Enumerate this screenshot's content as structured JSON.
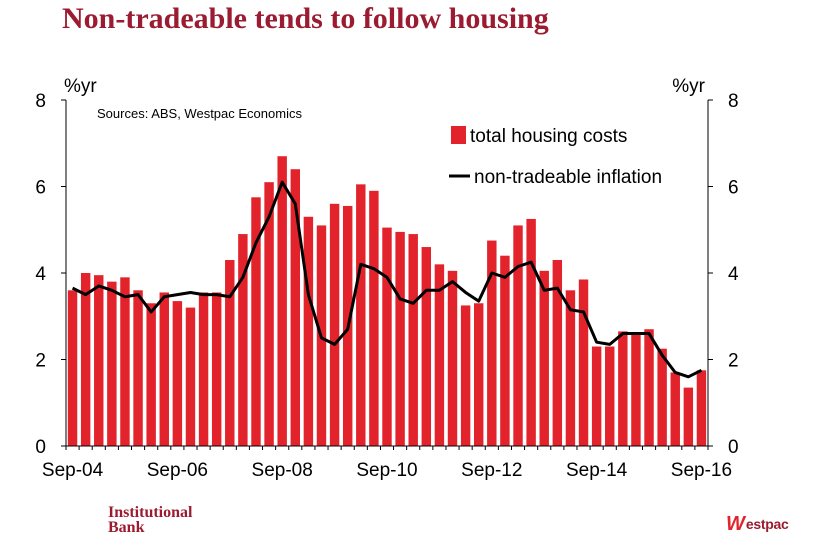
{
  "title": "Non-tradeable tends to follow housing",
  "footer": {
    "institutional_logo_line1": "Institutional",
    "institutional_logo_line2": "Bank",
    "westpac_mark": "W",
    "westpac_text": "estpac"
  },
  "colors": {
    "bar": "#e3232b",
    "line": "#000000",
    "title": "#9b1b30"
  },
  "chart_data": {
    "type": "bar",
    "title": "Non-tradeable tends to follow housing",
    "source": "Sources: ABS, Westpac Economics",
    "left_unit": "%yr",
    "right_unit": "%yr",
    "ylim": [
      0,
      8
    ],
    "yticks": [
      0,
      2,
      4,
      6,
      8
    ],
    "xtick_labels": [
      "Sep-04",
      "Sep-06",
      "Sep-08",
      "Sep-10",
      "Sep-12",
      "Sep-14",
      "Sep-16"
    ],
    "legend_position": "top-right",
    "grid": false,
    "categories": [
      "Sep-04",
      "Dec-04",
      "Mar-05",
      "Jun-05",
      "Sep-05",
      "Dec-05",
      "Mar-06",
      "Jun-06",
      "Sep-06",
      "Dec-06",
      "Mar-07",
      "Jun-07",
      "Sep-07",
      "Dec-07",
      "Mar-08",
      "Jun-08",
      "Sep-08",
      "Dec-08",
      "Mar-09",
      "Jun-09",
      "Sep-09",
      "Dec-09",
      "Mar-10",
      "Jun-10",
      "Sep-10",
      "Dec-10",
      "Mar-11",
      "Jun-11",
      "Sep-11",
      "Dec-11",
      "Mar-12",
      "Jun-12",
      "Sep-12",
      "Dec-12",
      "Mar-13",
      "Jun-13",
      "Sep-13",
      "Dec-13",
      "Mar-14",
      "Jun-14",
      "Sep-14",
      "Dec-14",
      "Mar-15",
      "Jun-15",
      "Sep-15",
      "Dec-15",
      "Mar-16",
      "Jun-16",
      "Sep-16"
    ],
    "series": [
      {
        "name": "total housing costs",
        "type": "bar",
        "values": [
          3.6,
          4.0,
          3.95,
          3.8,
          3.9,
          3.6,
          3.3,
          3.55,
          3.35,
          3.2,
          3.55,
          3.55,
          4.3,
          4.9,
          5.75,
          6.1,
          6.7,
          6.4,
          5.3,
          5.1,
          5.6,
          5.55,
          6.05,
          5.9,
          5.05,
          4.95,
          4.9,
          4.6,
          4.2,
          4.05,
          3.25,
          3.3,
          4.75,
          4.4,
          5.1,
          5.25,
          4.05,
          4.3,
          3.6,
          3.85,
          2.3,
          2.3,
          2.65,
          2.6,
          2.7,
          2.25,
          1.7,
          1.35,
          1.75
        ]
      },
      {
        "name": "non-tradeable inflation",
        "type": "line",
        "values": [
          3.65,
          3.5,
          3.7,
          3.6,
          3.45,
          3.5,
          3.1,
          3.45,
          3.5,
          3.55,
          3.5,
          3.5,
          3.45,
          3.9,
          4.7,
          5.3,
          6.1,
          5.6,
          3.5,
          2.5,
          2.35,
          2.7,
          4.2,
          4.1,
          3.9,
          3.4,
          3.3,
          3.6,
          3.6,
          3.8,
          3.55,
          3.35,
          4.0,
          3.9,
          4.15,
          4.25,
          3.6,
          3.65,
          3.15,
          3.1,
          2.4,
          2.35,
          2.6,
          2.6,
          2.6,
          2.1,
          1.7,
          1.6,
          1.75
        ]
      }
    ]
  }
}
